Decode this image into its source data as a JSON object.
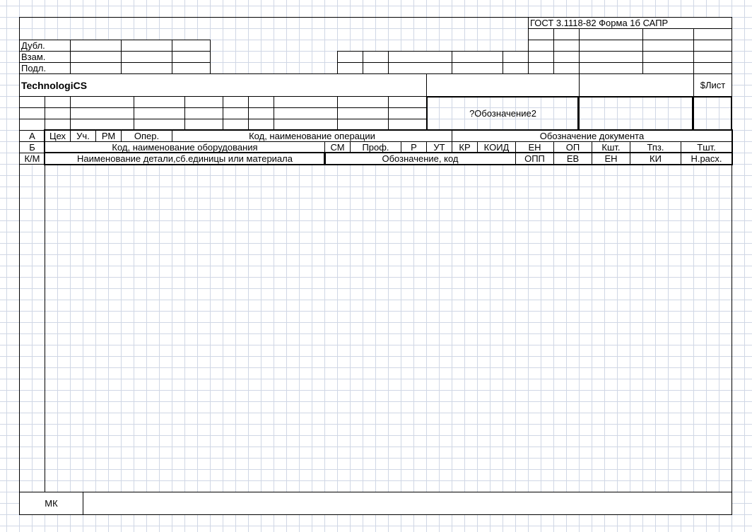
{
  "header": {
    "gost_form": "ГОСТ 3.1118-82 Форма 1б САПР",
    "dubl": "Дубл.",
    "vzam": "Взам.",
    "podl": "Подл.",
    "company": "TechnologiCS",
    "sheet": "$Лист",
    "designation": "?Обозначение2"
  },
  "row_a": {
    "marker": "А",
    "cols": [
      "Цех",
      "Уч.",
      "РМ",
      "Опер.",
      "Код, наименование операции",
      "Обозначение документа"
    ]
  },
  "row_b": {
    "marker": "Б",
    "cols": [
      "Код, наименование оборудования",
      "СМ",
      "Проф.",
      "Р",
      "УТ",
      "КР",
      "КОИД",
      "ЕН",
      "ОП",
      "Кшт.",
      "Тпз.",
      "Тшт."
    ]
  },
  "row_km": {
    "marker": "К/М",
    "cols": [
      "Наименование детали,сб.единицы или материала",
      "Обозначение, код",
      "ОПП",
      "ЕВ",
      "ЕН",
      "КИ",
      "Н.расх."
    ]
  },
  "footer": {
    "form_code": "МК"
  }
}
